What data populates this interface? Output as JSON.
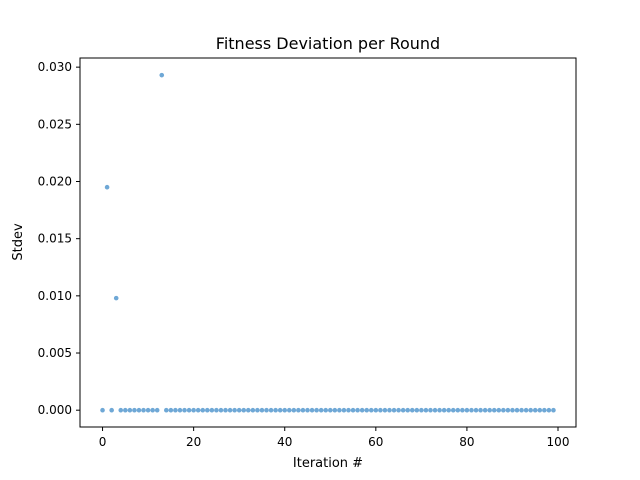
{
  "chart_data": {
    "type": "scatter",
    "title": "Fitness Deviation per Round",
    "xlabel": "Iteration #",
    "ylabel": "Stdev",
    "xlim": [
      -4.95,
      103.95
    ],
    "ylim": [
      -0.00147,
      0.0308
    ],
    "xticks": [
      0,
      20,
      40,
      60,
      80,
      100
    ],
    "xtick_labels": [
      "0",
      "20",
      "40",
      "60",
      "80",
      "100"
    ],
    "yticks": [
      0,
      0.005,
      0.01,
      0.015,
      0.02,
      0.025,
      0.03
    ],
    "ytick_labels": [
      "0.000",
      "0.005",
      "0.010",
      "0.015",
      "0.020",
      "0.025",
      "0.030"
    ],
    "grid": false,
    "marker_color": "#6fa8d6",
    "series": [
      {
        "x": [
          0,
          1,
          2,
          3,
          4,
          5,
          6,
          7,
          8,
          9,
          10,
          11,
          12,
          13,
          14,
          15,
          16,
          17,
          18,
          19,
          20,
          21,
          22,
          23,
          24,
          25,
          26,
          27,
          28,
          29,
          30,
          31,
          32,
          33,
          34,
          35,
          36,
          37,
          38,
          39,
          40,
          41,
          42,
          43,
          44,
          45,
          46,
          47,
          48,
          49,
          50,
          51,
          52,
          53,
          54,
          55,
          56,
          57,
          58,
          59,
          60,
          61,
          62,
          63,
          64,
          65,
          66,
          67,
          68,
          69,
          70,
          71,
          72,
          73,
          74,
          75,
          76,
          77,
          78,
          79,
          80,
          81,
          82,
          83,
          84,
          85,
          86,
          87,
          88,
          89,
          90,
          91,
          92,
          93,
          94,
          95,
          96,
          97,
          98,
          99
        ],
        "y": [
          0,
          0.0195,
          0,
          0.0098,
          0,
          0,
          0,
          0,
          0,
          0,
          0,
          0,
          0,
          0.0293,
          0,
          0,
          0,
          0,
          0,
          0,
          0,
          0,
          0,
          0,
          0,
          0,
          0,
          0,
          0,
          0,
          0,
          0,
          0,
          0,
          0,
          0,
          0,
          0,
          0,
          0,
          0,
          0,
          0,
          0,
          0,
          0,
          0,
          0,
          0,
          0,
          0,
          0,
          0,
          0,
          0,
          0,
          0,
          0,
          0,
          0,
          0,
          0,
          0,
          0,
          0,
          0,
          0,
          0,
          0,
          0,
          0,
          0,
          0,
          0,
          0,
          0,
          0,
          0,
          0,
          0,
          0,
          0,
          0,
          0,
          0,
          0,
          0,
          0,
          0,
          0,
          0,
          0,
          0,
          0,
          0,
          0,
          0,
          0,
          0,
          0
        ]
      }
    ]
  }
}
